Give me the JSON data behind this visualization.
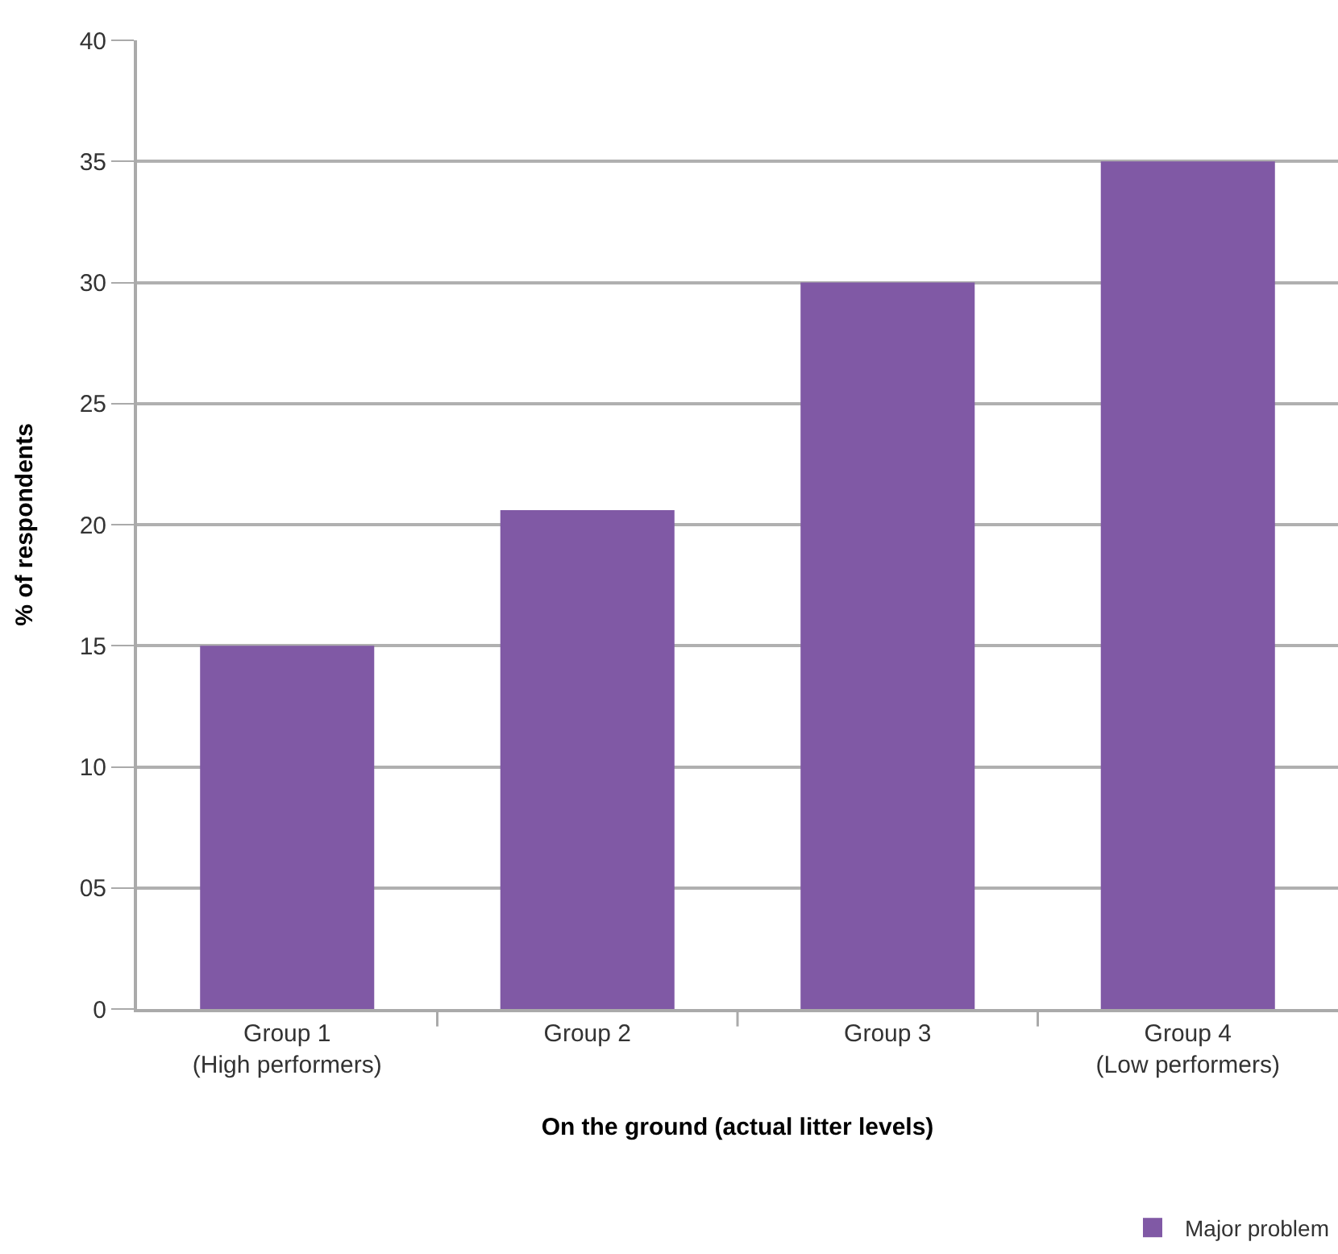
{
  "chart_data": {
    "type": "bar",
    "xlabel": "On the ground (actual litter levels)",
    "ylabel": "% of respondents",
    "categories": [
      "Group 1\n(High performers)",
      "Group 2",
      "Group 3",
      "Group 4\n(Low performers)"
    ],
    "series": [
      {
        "name": "Major problem",
        "color": "#8059a5",
        "values": [
          15,
          20.6,
          30,
          35
        ]
      }
    ],
    "ylim": [
      0,
      40
    ],
    "yticks": [
      0,
      {
        "value": 5,
        "label": "05"
      },
      10,
      15,
      20,
      25,
      30,
      35,
      40
    ],
    "grid": "y",
    "legend": "bottom right"
  }
}
